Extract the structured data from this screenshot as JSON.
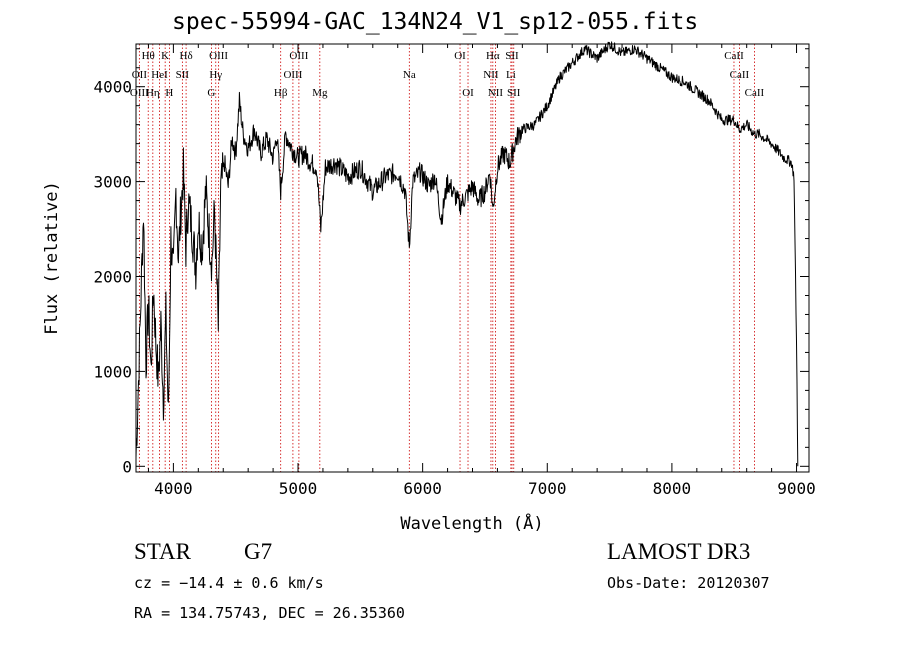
{
  "chart_data": {
    "type": "line",
    "title": "spec-55994-GAC_134N24_V1_sp12-055.fits",
    "xlabel": "Wavelength (Å)",
    "ylabel": "Flux (relative)",
    "xlim": [
      3700,
      9100
    ],
    "ylim": [
      -60,
      4450
    ],
    "xticks": [
      4000,
      5000,
      6000,
      7000,
      8000,
      9000
    ],
    "yticks": [
      0,
      1000,
      2000,
      3000,
      4000
    ],
    "grid": false,
    "series": [
      {
        "values": [
          [
            3700,
            100
          ],
          [
            3720,
            900
          ],
          [
            3740,
            1800
          ],
          [
            3760,
            2700
          ],
          [
            3780,
            1100
          ],
          [
            3800,
            1700
          ],
          [
            3820,
            1000
          ],
          [
            3840,
            1900
          ],
          [
            3860,
            1300
          ],
          [
            3880,
            900
          ],
          [
            3900,
            1500
          ],
          [
            3920,
            700
          ],
          [
            3940,
            1600
          ],
          [
            3960,
            500
          ],
          [
            3980,
            2400
          ],
          [
            4000,
            2000
          ],
          [
            4020,
            2900
          ],
          [
            4040,
            2200
          ],
          [
            4060,
            2700
          ],
          [
            4080,
            3100
          ],
          [
            4100,
            2300
          ],
          [
            4120,
            2800
          ],
          [
            4150,
            2500
          ],
          [
            4180,
            2100
          ],
          [
            4200,
            2600
          ],
          [
            4230,
            2300
          ],
          [
            4260,
            2900
          ],
          [
            4290,
            2400
          ],
          [
            4310,
            2150
          ],
          [
            4330,
            2700
          ],
          [
            4360,
            1450
          ],
          [
            4380,
            2900
          ],
          [
            4410,
            3200
          ],
          [
            4440,
            2950
          ],
          [
            4470,
            3450
          ],
          [
            4500,
            3300
          ],
          [
            4530,
            3850
          ],
          [
            4560,
            3500
          ],
          [
            4600,
            3350
          ],
          [
            4650,
            3550
          ],
          [
            4700,
            3300
          ],
          [
            4750,
            3450
          ],
          [
            4800,
            3250
          ],
          [
            4830,
            3500
          ],
          [
            4861,
            2900
          ],
          [
            4900,
            3500
          ],
          [
            4950,
            3350
          ],
          [
            5000,
            3250
          ],
          [
            5050,
            3300
          ],
          [
            5100,
            3200
          ],
          [
            5150,
            3150
          ],
          [
            5183,
            2500
          ],
          [
            5220,
            3150
          ],
          [
            5300,
            3200
          ],
          [
            5400,
            3050
          ],
          [
            5500,
            3150
          ],
          [
            5600,
            2900
          ],
          [
            5700,
            3050
          ],
          [
            5800,
            3100
          ],
          [
            5860,
            2900
          ],
          [
            5893,
            2300
          ],
          [
            5920,
            3000
          ],
          [
            5980,
            3100
          ],
          [
            6050,
            2950
          ],
          [
            6100,
            3050
          ],
          [
            6150,
            2600
          ],
          [
            6200,
            3000
          ],
          [
            6300,
            2750
          ],
          [
            6400,
            2950
          ],
          [
            6450,
            2800
          ],
          [
            6500,
            2900
          ],
          [
            6540,
            3100
          ],
          [
            6563,
            2700
          ],
          [
            6600,
            3150
          ],
          [
            6650,
            3300
          ],
          [
            6700,
            3200
          ],
          [
            6750,
            3450
          ],
          [
            6800,
            3550
          ],
          [
            6900,
            3600
          ],
          [
            7000,
            3800
          ],
          [
            7100,
            4100
          ],
          [
            7200,
            4250
          ],
          [
            7300,
            4400
          ],
          [
            7400,
            4300
          ],
          [
            7500,
            4450
          ],
          [
            7600,
            4350
          ],
          [
            7700,
            4400
          ],
          [
            7800,
            4300
          ],
          [
            7900,
            4200
          ],
          [
            8000,
            4100
          ],
          [
            8100,
            4050
          ],
          [
            8200,
            3950
          ],
          [
            8300,
            3850
          ],
          [
            8400,
            3650
          ],
          [
            8500,
            3650
          ],
          [
            8542,
            3550
          ],
          [
            8600,
            3600
          ],
          [
            8662,
            3500
          ],
          [
            8700,
            3500
          ],
          [
            8800,
            3400
          ],
          [
            8900,
            3250
          ],
          [
            8960,
            3200
          ],
          [
            8980,
            3050
          ],
          [
            9000,
            1300
          ],
          [
            9010,
            0
          ]
        ]
      }
    ],
    "line_labels": [
      {
        "label": "Hθ",
        "wave": 3798,
        "row": 0,
        "color": "#cc0000"
      },
      {
        "label": "K",
        "wave": 3934,
        "row": 0,
        "color": "#cc0000"
      },
      {
        "label": "Hδ",
        "wave": 4102,
        "row": 0,
        "color": "#cc0000"
      },
      {
        "label": "OIII",
        "wave": 4363,
        "row": 0,
        "color": "#cc0000"
      },
      {
        "label": "OIII",
        "wave": 5007,
        "row": 0,
        "color": "#cc0000"
      },
      {
        "label": "OI",
        "wave": 6300,
        "row": 0,
        "color": "#cc0000"
      },
      {
        "label": "Hα",
        "wave": 6563,
        "row": 0,
        "color": "#cc0000"
      },
      {
        "label": "SII",
        "wave": 6717,
        "row": 0,
        "color": "#cc0000"
      },
      {
        "label": "CaII",
        "wave": 8498,
        "row": 0,
        "color": "#cc0000"
      },
      {
        "label": "OII",
        "wave": 3727,
        "row": 1,
        "color": "#cc0000"
      },
      {
        "label": "HeI",
        "wave": 3889,
        "row": 1,
        "color": "#cc0000"
      },
      {
        "label": "SII",
        "wave": 4072,
        "row": 1,
        "color": "#cc0000"
      },
      {
        "label": "Hγ",
        "wave": 4340,
        "row": 1,
        "color": "#cc0000"
      },
      {
        "label": "OIII",
        "wave": 4959,
        "row": 1,
        "color": "#cc0000"
      },
      {
        "label": "Na",
        "wave": 5893,
        "row": 1,
        "color": "#cc0000"
      },
      {
        "label": "NII",
        "wave": 6548,
        "row": 1,
        "color": "#cc0000"
      },
      {
        "label": "Li",
        "wave": 6708,
        "row": 1,
        "color": "#cc0000"
      },
      {
        "label": "CaII",
        "wave": 8542,
        "row": 1,
        "color": "#cc0000"
      },
      {
        "label": "OIII",
        "wave": 3727,
        "row": 2,
        "color": "#cc0000"
      },
      {
        "label": "Hη",
        "wave": 3835,
        "row": 2,
        "color": "#cc0000"
      },
      {
        "label": "H",
        "wave": 3968,
        "row": 2,
        "color": "#cc0000"
      },
      {
        "label": "G",
        "wave": 4305,
        "row": 2,
        "color": "#cc0000"
      },
      {
        "label": "Hβ",
        "wave": 4861,
        "row": 2,
        "color": "#cc0000"
      },
      {
        "label": "Mg",
        "wave": 5175,
        "row": 2,
        "color": "#cc0000"
      },
      {
        "label": "OI",
        "wave": 6364,
        "row": 2,
        "color": "#cc0000"
      },
      {
        "label": "NII",
        "wave": 6584,
        "row": 2,
        "color": "#cc0000"
      },
      {
        "label": "SII",
        "wave": 6731,
        "row": 2,
        "color": "#cc0000"
      },
      {
        "label": "CaII",
        "wave": 8662,
        "row": 2,
        "color": "#cc0000"
      }
    ]
  },
  "info": {
    "class_label": "STAR",
    "subclass": "G7",
    "survey": "LAMOST DR3",
    "cz": "cz = −14.4 ± 0.6 km/s",
    "obs_date": "Obs-Date: 20120307",
    "coords": "RA = 134.75743, DEC =  26.35360"
  },
  "colors": {
    "spectrum": "#000000",
    "line_markers": "#cc0000",
    "background": "#ffffff"
  }
}
